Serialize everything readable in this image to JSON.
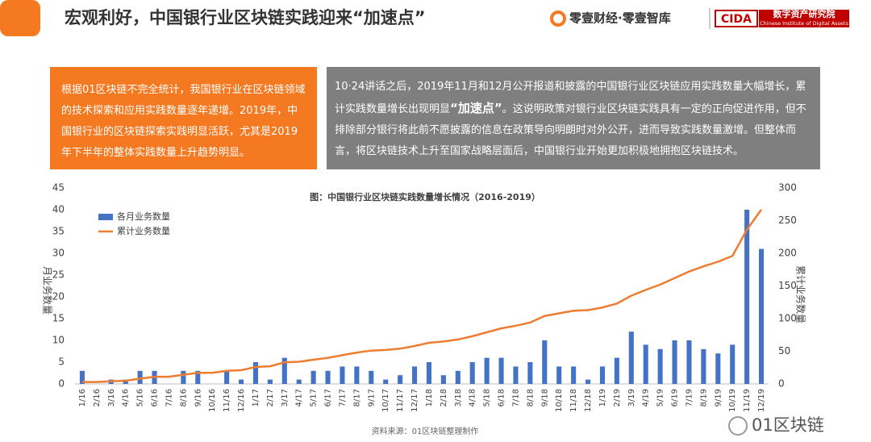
{
  "header": {
    "title": "宏观利好，中国银行业区块链实践迎来“加速点”",
    "logo": "零壹财经·零壹智库",
    "org_abbr": "CIDA",
    "org_name": "数字资产研究院",
    "org_name_en": "Chinese Institute of Digital Assets"
  },
  "left_box": "根据01区块链不完全统计，我国银行业在区块链领域的技术探索和应用实践数量逐年递增。2019年，中国银行业的区块链探索实践明显活跃，尤其是2019年下半年的整体实践数量上升趋势明显。",
  "right_box": {
    "before": "10·24讲话之后，2019年11月和12月公开报道和披露的中国银行业区块链应用实践数量大幅增长，累计实践数量增长出现明显",
    "bold": "“加速点”",
    "after": "。这说明政策对银行业区块链实践具有一定的正向促进作用，但不排除部分银行将此前不愿披露的信息在政策导向明朗时对外公开，进而导致实践数量激增。但整体而言，将区块链技术上升至国家战略层面后，中国银行业开始更加积极地拥抱区块链技术。"
  },
  "chart_data": {
    "type": "bar",
    "title": "图：中国银行业区块链实践数量增长情况（2016-2019）",
    "y_label": "月业务数量",
    "y2_label": "累计业务数量",
    "categories": [
      "1/16",
      "2/16",
      "3/16",
      "4/16",
      "5/16",
      "6/16",
      "7/16",
      "8/16",
      "9/16",
      "10/16",
      "11/16",
      "12/16",
      "1/17",
      "2/17",
      "3/17",
      "4/17",
      "5/17",
      "6/17",
      "7/17",
      "8/17",
      "9/17",
      "10/17",
      "11/17",
      "12/17",
      "1/18",
      "2/18",
      "3/18",
      "4/18",
      "5/18",
      "6/18",
      "7/18",
      "8/18",
      "9/18",
      "10/18",
      "11/18",
      "12/18",
      "1/19",
      "2/19",
      "3/19",
      "4/19",
      "5/19",
      "6/19",
      "7/19",
      "8/19",
      "9/19",
      "10/19",
      "11/19",
      "12/19"
    ],
    "series": [
      {
        "name": "各月业务数量",
        "type": "bar",
        "color": "#4472c4",
        "values": [
          3,
          0,
          1,
          1,
          3,
          3,
          0,
          3,
          3,
          0,
          3,
          1,
          5,
          1,
          6,
          1,
          3,
          3,
          4,
          4,
          3,
          1,
          2,
          4,
          5,
          2,
          3,
          5,
          6,
          6,
          4,
          5,
          10,
          4,
          4,
          1,
          4,
          6,
          12,
          9,
          8,
          10,
          10,
          8,
          7,
          9,
          40,
          31
        ]
      },
      {
        "name": "累计业务数量",
        "type": "line",
        "axis": "y2",
        "color": "#ed7d31",
        "values": [
          3,
          3,
          4,
          5,
          8,
          11,
          11,
          14,
          17,
          17,
          20,
          21,
          26,
          27,
          33,
          34,
          37,
          40,
          44,
          48,
          51,
          52,
          54,
          58,
          63,
          65,
          68,
          73,
          79,
          85,
          89,
          94,
          104,
          108,
          112,
          113,
          117,
          123,
          135,
          144,
          152,
          162,
          172,
          180,
          187,
          196,
          236,
          267
        ]
      }
    ],
    "ylim": [
      0,
      45
    ],
    "yticks": [
      0,
      5,
      10,
      15,
      20,
      25,
      30,
      35,
      40,
      45
    ],
    "y2lim": [
      0,
      300
    ],
    "y2ticks": [
      0,
      50,
      100,
      150,
      200,
      250,
      300
    ],
    "grid": false,
    "legend": "upper left",
    "source": "资料来源：01区块链整理制作",
    "watermark": "01区块链"
  }
}
